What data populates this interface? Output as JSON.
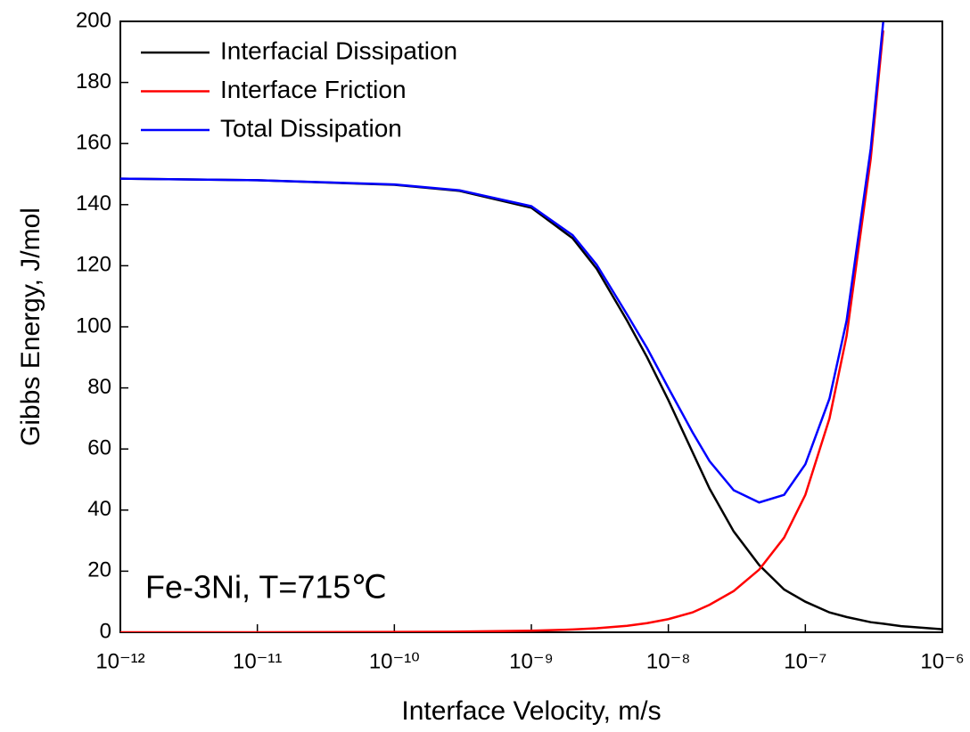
{
  "chart_data": {
    "type": "line",
    "xlabel": "Interface Velocity, m/s",
    "ylabel": "Gibbs Energy, J/mol",
    "annotation": "Fe-3Ni, T=715℃",
    "xscale": "log",
    "legend": "upper left",
    "x": [
      1e-12,
      1e-11,
      1e-10,
      3e-10,
      1e-09,
      2e-09,
      3e-09,
      5e-09,
      7e-09,
      1e-08,
      1.5e-08,
      2e-08,
      3e-08,
      4.6e-08,
      7e-08,
      1e-07,
      1.5e-07,
      2e-07,
      3e-07,
      3.7e-07,
      5e-07,
      1e-06
    ],
    "series": [
      {
        "name": "Interfacial Dissipation",
        "color": "#000000",
        "values": [
          148.5,
          148,
          146.5,
          144.5,
          139,
          129,
          119,
          102,
          90,
          76,
          59,
          47,
          33,
          22,
          14,
          10,
          6.5,
          5,
          3.3,
          2.8,
          2,
          1
        ]
      },
      {
        "name": "Interface Friction",
        "color": "#ff0000",
        "values": [
          0,
          0,
          0.1,
          0.2,
          0.5,
          0.9,
          1.3,
          2.1,
          3,
          4.3,
          6.5,
          9,
          13.5,
          20.5,
          31,
          45,
          70,
          97,
          155,
          197,
          null,
          null
        ]
      },
      {
        "name": "Total Dissipation",
        "color": "#0000ff",
        "values": [
          148.5,
          148,
          146.6,
          144.7,
          139.5,
          130,
          120.3,
          104,
          93,
          80,
          65.5,
          56,
          46.5,
          42.5,
          45,
          55,
          76.5,
          102,
          158.3,
          199.8,
          null,
          null
        ]
      }
    ],
    "xlim": [
      1e-12,
      1e-06
    ],
    "xticks": [
      {
        "value": 1e-12,
        "label": "10⁻¹²"
      },
      {
        "value": 1e-11,
        "label": "10⁻¹¹"
      },
      {
        "value": 1e-10,
        "label": "10⁻¹⁰"
      },
      {
        "value": 1e-09,
        "label": "10⁻⁹"
      },
      {
        "value": 1e-08,
        "label": "10⁻⁸"
      },
      {
        "value": 1e-07,
        "label": "10⁻⁷"
      },
      {
        "value": 1e-06,
        "label": "10⁻⁶"
      }
    ],
    "ylim": [
      0,
      200
    ],
    "yticks": [
      0,
      20,
      40,
      60,
      80,
      100,
      120,
      140,
      160,
      180,
      200
    ]
  }
}
